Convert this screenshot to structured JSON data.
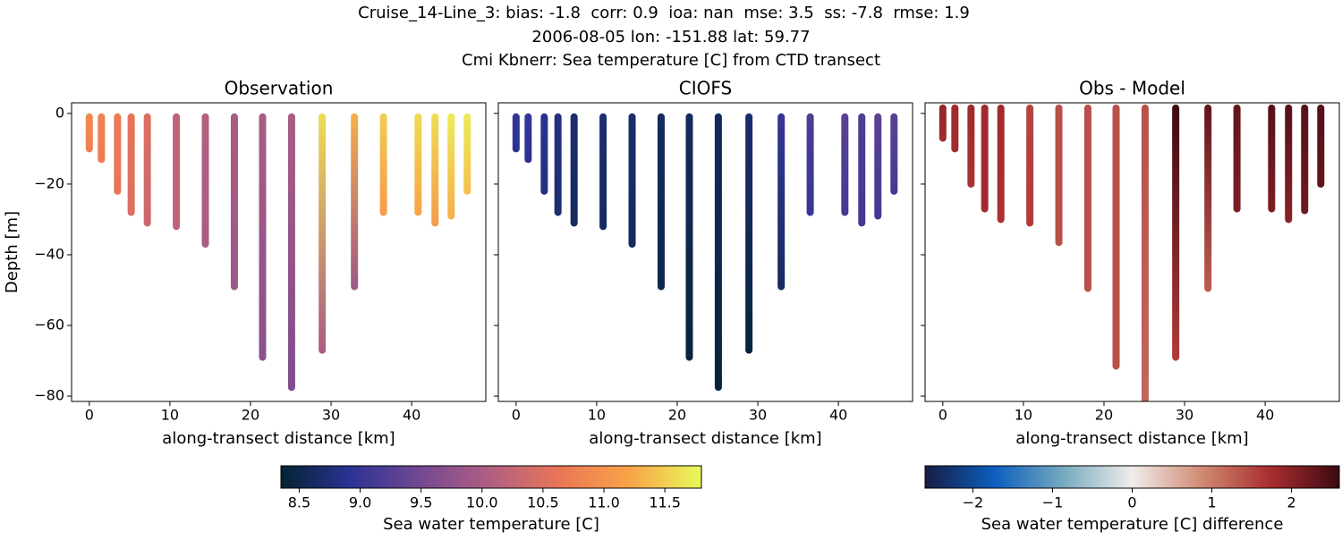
{
  "suptitle": [
    "Cruise_14-Line_3: bias: -1.8  corr: 0.9  ioa: nan  mse: 3.5  ss: -7.8  rmse: 1.9",
    "2006-08-05 lon: -151.88 lat: 59.77",
    "Cmi Kbnerr: Sea temperature [C] from CTD transect"
  ],
  "chart_data": [
    {
      "type": "cast-scatter",
      "title": "Observation",
      "xlabel": "along-transect distance [km]",
      "ylabel": "Depth [m]",
      "colorbar": 0,
      "xlim": [
        -2.2,
        49.2
      ],
      "xticks": [
        0,
        10,
        20,
        30,
        40
      ],
      "ylim": [
        -81.5,
        3
      ],
      "yticks": [
        0,
        {
          "value": -20,
          "label": "−20"
        },
        {
          "value": -40,
          "label": "−40"
        },
        {
          "value": -60,
          "label": "−60"
        },
        {
          "value": -80,
          "label": "−80"
        }
      ],
      "top_depth": -1,
      "x": [
        0,
        1.5,
        3.5,
        5.2,
        7.2,
        10.8,
        14.4,
        18,
        21.5,
        25.1,
        28.9,
        32.9,
        36.5,
        40.8,
        42.9,
        44.9,
        46.9
      ],
      "bottom_depth": [
        -10,
        -13,
        -22,
        -28,
        -31,
        -32,
        -37,
        -49,
        -69,
        -77.5,
        -67,
        -49,
        -28,
        -28,
        -31,
        -29,
        -22
      ],
      "surface_values": [
        10.9,
        10.8,
        10.7,
        10.6,
        10.5,
        10.2,
        10.1,
        10.0,
        10.0,
        10.0,
        11.6,
        11.3,
        11.5,
        11.6,
        11.6,
        11.7,
        11.7
      ],
      "bottom_values": [
        10.8,
        10.7,
        10.6,
        10.5,
        10.3,
        10.2,
        10.0,
        9.9,
        9.7,
        9.6,
        10.0,
        9.9,
        11.1,
        11.2,
        11.1,
        11.3,
        11.4
      ]
    },
    {
      "type": "cast-scatter",
      "title": "CIOFS",
      "xlabel": "along-transect distance [km]",
      "colorbar": 0,
      "xlim": [
        -2.2,
        49.2
      ],
      "xticks": [
        0,
        10,
        20,
        30,
        40
      ],
      "ylim": [
        -81.5,
        3
      ],
      "yticks": [
        0,
        -20,
        -40,
        -60,
        -80
      ],
      "top_depth": -1,
      "x": [
        0,
        1.5,
        3.5,
        5.2,
        7.2,
        10.8,
        14.4,
        18,
        21.5,
        25.1,
        28.9,
        32.9,
        36.5,
        40.8,
        42.9,
        44.9,
        46.9
      ],
      "bottom_depth": [
        -10,
        -13,
        -22,
        -28,
        -31,
        -32,
        -37,
        -49,
        -69,
        -77.5,
        -67,
        -49,
        -28,
        -28,
        -31,
        -29,
        -22
      ],
      "surface_values": [
        9.0,
        9.0,
        8.9,
        8.8,
        8.7,
        8.7,
        8.7,
        8.6,
        8.6,
        8.6,
        8.7,
        9.0,
        9.2,
        9.3,
        9.2,
        9.3,
        9.3
      ],
      "bottom_values": [
        8.9,
        8.9,
        8.8,
        8.7,
        8.6,
        8.6,
        8.6,
        8.5,
        8.4,
        8.4,
        8.4,
        8.6,
        9.0,
        9.1,
        9.1,
        9.1,
        9.1
      ]
    },
    {
      "type": "cast-scatter",
      "title": "Obs - Model",
      "xlabel": "along-transect distance [km]",
      "colorbar": 1,
      "xlim": [
        -2.2,
        49.2
      ],
      "xticks": [
        0,
        10,
        20,
        30,
        40
      ],
      "ylim": [
        -81.5,
        3
      ],
      "yticks": [
        0,
        -20,
        -40,
        -60,
        -80
      ],
      "top_depth": 1.5,
      "x": [
        0,
        1.5,
        3.5,
        5.2,
        7.2,
        10.8,
        14.4,
        18,
        21.5,
        25.1,
        28.9,
        32.9,
        36.5,
        40.8,
        42.9,
        44.9,
        46.9
      ],
      "bottom_depth": [
        -7,
        -10,
        -20,
        -27,
        -30,
        -31,
        -36.5,
        -49.5,
        -71.5,
        -82,
        -69,
        -49.5,
        -27,
        -27,
        -30,
        -27.5,
        -20
      ],
      "surface_values": [
        1.9,
        1.8,
        1.8,
        1.8,
        1.8,
        1.5,
        1.4,
        1.4,
        1.4,
        1.4,
        2.9,
        2.3,
        2.3,
        2.4,
        2.4,
        2.4,
        2.4
      ],
      "bottom_values": [
        1.8,
        1.8,
        1.7,
        1.8,
        1.7,
        1.6,
        1.4,
        1.4,
        1.4,
        1.2,
        1.6,
        1.3,
        2.1,
        2.1,
        2.0,
        2.2,
        2.3
      ]
    }
  ],
  "colorbars": [
    {
      "label": "Sea water temperature [C]",
      "clim": [
        8.35,
        11.8
      ],
      "ticks": [
        8.5,
        {
          "value": 9,
          "label": "9.0"
        },
        9.5,
        {
          "value": 10,
          "label": "10.0"
        },
        10.5,
        {
          "value": 11,
          "label": "11.0"
        },
        11.5
      ],
      "colormap": [
        "#042333",
        "#2c3395",
        "#744992",
        "#b15f82",
        "#eb7655",
        "#f8a548",
        "#e8fa5b"
      ]
    },
    {
      "label": "Sea water temperature [C] difference",
      "clim": [
        -2.6,
        2.6
      ],
      "ticks": [
        {
          "value": -2,
          "label": "−2"
        },
        {
          "value": -1,
          "label": "−1"
        },
        0,
        1,
        2
      ],
      "colormap": [
        "#181c43",
        "#0c5ebe",
        "#75aabe",
        "#f1eceb",
        "#d08b73",
        "#a92d2f",
        "#3c0912"
      ]
    }
  ]
}
